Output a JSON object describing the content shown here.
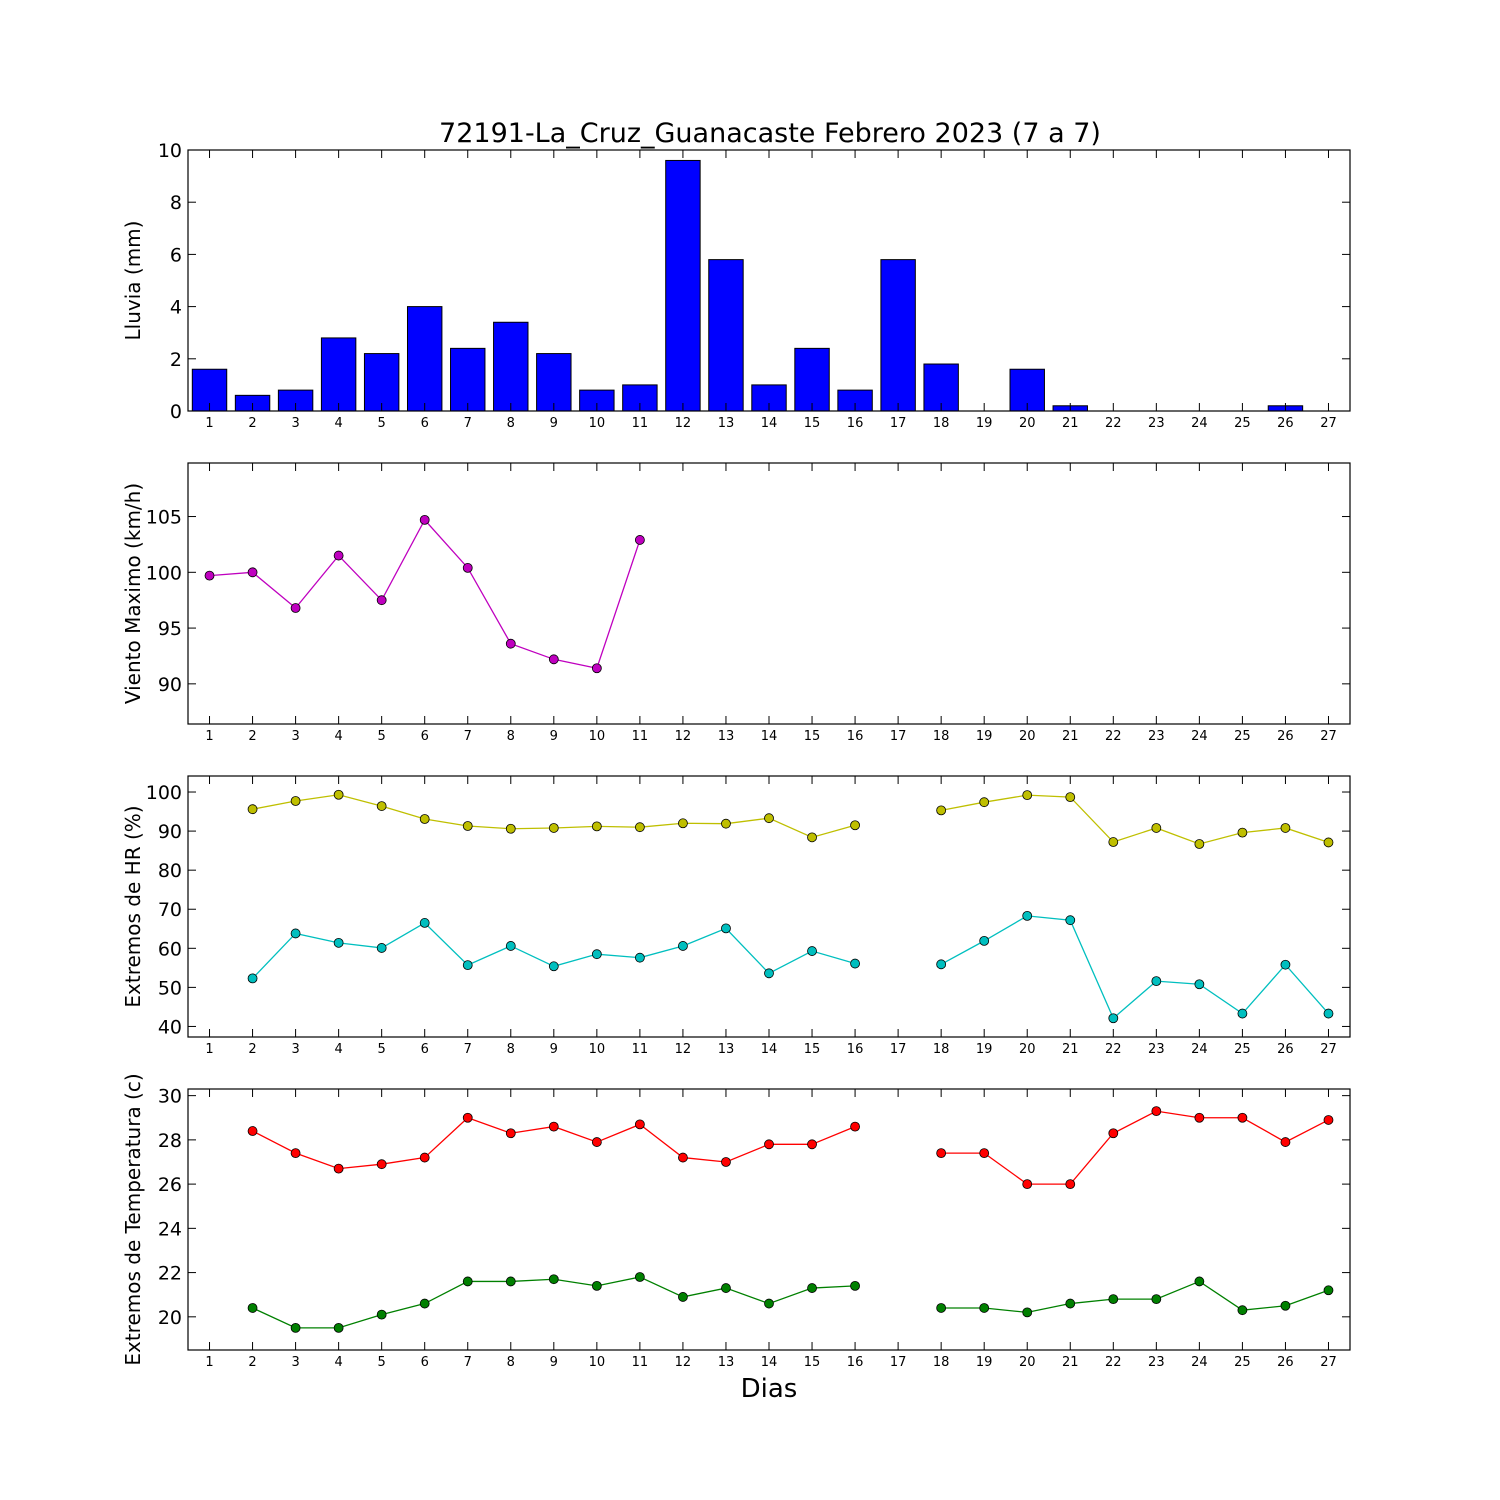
{
  "figure": {
    "title": "72191-La_Cruz_Guanacaste Febrero 2023  (7 a 7)",
    "xlabel": "Dias"
  },
  "chart_data": [
    {
      "type": "bar",
      "ylabel": "Lluvia (mm)",
      "x": [
        1,
        2,
        3,
        4,
        5,
        6,
        7,
        8,
        9,
        10,
        11,
        12,
        13,
        14,
        15,
        16,
        17,
        18,
        19,
        20,
        21,
        22,
        23,
        24,
        25,
        26,
        27
      ],
      "xlim": [
        0.5,
        27.5
      ],
      "ylim": [
        0,
        10
      ],
      "yticks": [
        0,
        2,
        4,
        6,
        8,
        10
      ],
      "grid": false,
      "series": [
        {
          "color": "#0000ff",
          "values": [
            1.6,
            0.6,
            0.8,
            2.8,
            2.2,
            4.0,
            2.4,
            3.4,
            2.2,
            0.8,
            1.0,
            9.6,
            5.8,
            1.0,
            2.4,
            0.8,
            5.8,
            1.8,
            0.0,
            1.6,
            0.2,
            0.0,
            0.0,
            0.0,
            0.0,
            0.2,
            null
          ]
        }
      ]
    },
    {
      "type": "line",
      "ylabel": "Viento Maximo (km/h)",
      "x": [
        1,
        2,
        3,
        4,
        5,
        6,
        7,
        8,
        9,
        10,
        11,
        12,
        13,
        14,
        15,
        16,
        17,
        18,
        19,
        20,
        21,
        22,
        23,
        24,
        25,
        26,
        27
      ],
      "xlim": [
        0.5,
        27.5
      ],
      "ylim": [
        86.4,
        109.8
      ],
      "yticks": [
        90,
        95,
        100,
        105
      ],
      "grid": false,
      "series": [
        {
          "color": "#bf00bf",
          "values": [
            99.7,
            100.0,
            96.8,
            101.5,
            97.5,
            104.7,
            100.4,
            93.6,
            92.2,
            91.4,
            102.9,
            null,
            null,
            null,
            null,
            null,
            null,
            null,
            null,
            null,
            null,
            null,
            null,
            null,
            null,
            null,
            null
          ]
        }
      ]
    },
    {
      "type": "line",
      "ylabel": "Extremos de HR (%)",
      "x": [
        1,
        2,
        3,
        4,
        5,
        6,
        7,
        8,
        9,
        10,
        11,
        12,
        13,
        14,
        15,
        16,
        17,
        18,
        19,
        20,
        21,
        22,
        23,
        24,
        25,
        26,
        27
      ],
      "xlim": [
        0.5,
        27.5
      ],
      "ylim": [
        37.3,
        104.1
      ],
      "yticks": [
        40,
        50,
        60,
        70,
        80,
        90,
        100
      ],
      "grid": false,
      "series": [
        {
          "color": "#bfbf00",
          "values": [
            null,
            95.6,
            97.7,
            99.3,
            96.4,
            93.1,
            91.3,
            90.6,
            90.8,
            91.2,
            91.0,
            92.0,
            91.9,
            93.3,
            88.4,
            91.5,
            null,
            95.3,
            97.4,
            99.2,
            98.7,
            87.2,
            90.8,
            86.7,
            89.6,
            90.8,
            87.1
          ]
        },
        {
          "color": "#00bfbf",
          "values": [
            null,
            52.3,
            63.8,
            61.4,
            60.1,
            66.5,
            55.7,
            60.6,
            55.4,
            58.5,
            57.6,
            60.6,
            65.1,
            53.6,
            59.3,
            56.1,
            null,
            55.9,
            61.9,
            68.3,
            67.2,
            42.1,
            51.6,
            50.8,
            43.3,
            55.8,
            43.3
          ]
        }
      ]
    },
    {
      "type": "line",
      "ylabel": "Extremos de Temperatura (c)",
      "x": [
        1,
        2,
        3,
        4,
        5,
        6,
        7,
        8,
        9,
        10,
        11,
        12,
        13,
        14,
        15,
        16,
        17,
        18,
        19,
        20,
        21,
        22,
        23,
        24,
        25,
        26,
        27
      ],
      "xlim": [
        0.5,
        27.5
      ],
      "ylim": [
        18.5,
        30.3
      ],
      "yticks": [
        20,
        22,
        24,
        26,
        28,
        30
      ],
      "grid": false,
      "series": [
        {
          "color": "#ff0000",
          "values": [
            null,
            28.4,
            27.4,
            26.7,
            26.9,
            27.2,
            29.0,
            28.3,
            28.6,
            27.9,
            28.7,
            27.2,
            27.0,
            27.8,
            27.8,
            28.6,
            null,
            27.4,
            27.4,
            26.0,
            26.0,
            28.3,
            29.3,
            29.0,
            29.0,
            27.9,
            28.9
          ]
        },
        {
          "color": "#008000",
          "values": [
            null,
            20.4,
            19.5,
            19.5,
            20.1,
            20.6,
            21.6,
            21.6,
            21.7,
            21.4,
            21.8,
            20.9,
            21.3,
            20.6,
            21.3,
            21.4,
            null,
            20.4,
            20.4,
            20.2,
            20.6,
            20.8,
            20.8,
            21.6,
            20.3,
            20.5,
            21.2
          ]
        }
      ]
    }
  ]
}
